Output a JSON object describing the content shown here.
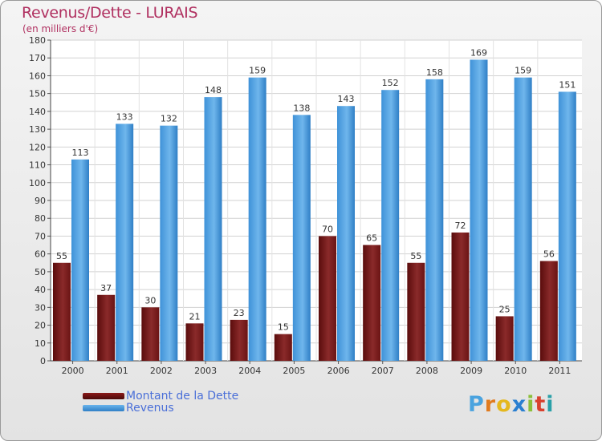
{
  "header": {
    "title": "Revenus/Dette - LURAIS",
    "subtitle": "(en milliers d'€)"
  },
  "legend": {
    "items": [
      {
        "label": "Montant de la Dette",
        "color": "#6b0f0f"
      },
      {
        "label": "Revenus",
        "color": "#4a9de0"
      }
    ]
  },
  "brand": {
    "letters": [
      "P",
      "r",
      "o",
      "x",
      "i",
      "t",
      "i"
    ],
    "colors": [
      "#4aa3df",
      "#e07b1f",
      "#e5b81e",
      "#2a7fd0",
      "#8bbf3a",
      "#d9412e",
      "#2aa0a8"
    ]
  },
  "chart_data": {
    "type": "bar",
    "categories": [
      "2000",
      "2001",
      "2002",
      "2003",
      "2004",
      "2005",
      "2006",
      "2007",
      "2008",
      "2009",
      "2010",
      "2011"
    ],
    "series": [
      {
        "name": "Montant de la Dette",
        "values": [
          55,
          37,
          30,
          21,
          23,
          15,
          70,
          65,
          55,
          72,
          25,
          56
        ],
        "color": "#7a1a1a"
      },
      {
        "name": "Revenus",
        "values": [
          113,
          133,
          132,
          148,
          159,
          138,
          143,
          152,
          158,
          169,
          159,
          151
        ],
        "color": "#4a9de0"
      }
    ],
    "yticks": [
      0,
      10,
      20,
      30,
      40,
      50,
      60,
      70,
      80,
      90,
      100,
      110,
      120,
      130,
      140,
      150,
      160,
      170,
      180
    ],
    "ylim": [
      0,
      180
    ],
    "grid": true,
    "legend_position": "bottom-left",
    "title": "Revenus/Dette - LURAIS",
    "ylabel": "(en milliers d'€)",
    "xlabel": ""
  }
}
